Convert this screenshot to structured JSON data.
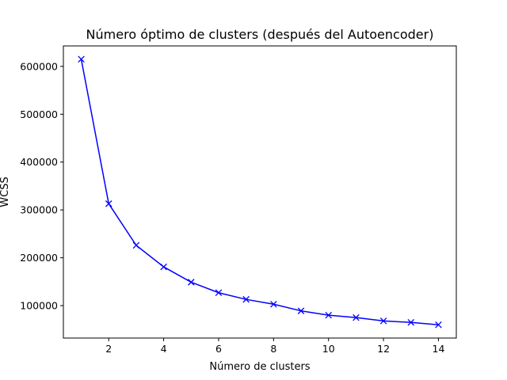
{
  "chart_data": {
    "type": "line",
    "title": "Número óptimo de clusters (después del Autoencoder)",
    "xlabel": "Número de clusters",
    "ylabel": "WCSS",
    "x": [
      1,
      2,
      3,
      4,
      5,
      6,
      7,
      8,
      9,
      10,
      11,
      12,
      13,
      14
    ],
    "series": [
      {
        "values": [
          615000,
          313000,
          226000,
          181000,
          149000,
          127000,
          113000,
          103000,
          89000,
          80000,
          75000,
          68000,
          65000,
          60000
        ],
        "color": "#0000ff",
        "marker": "x"
      }
    ],
    "xticks": [
      2,
      4,
      6,
      8,
      10,
      12,
      14
    ],
    "yticks": [
      100000,
      200000,
      300000,
      400000,
      500000,
      600000
    ],
    "xlim": [
      0.35,
      14.65
    ],
    "ylim": [
      32250,
      642750
    ],
    "grid": false,
    "legend": "none"
  }
}
